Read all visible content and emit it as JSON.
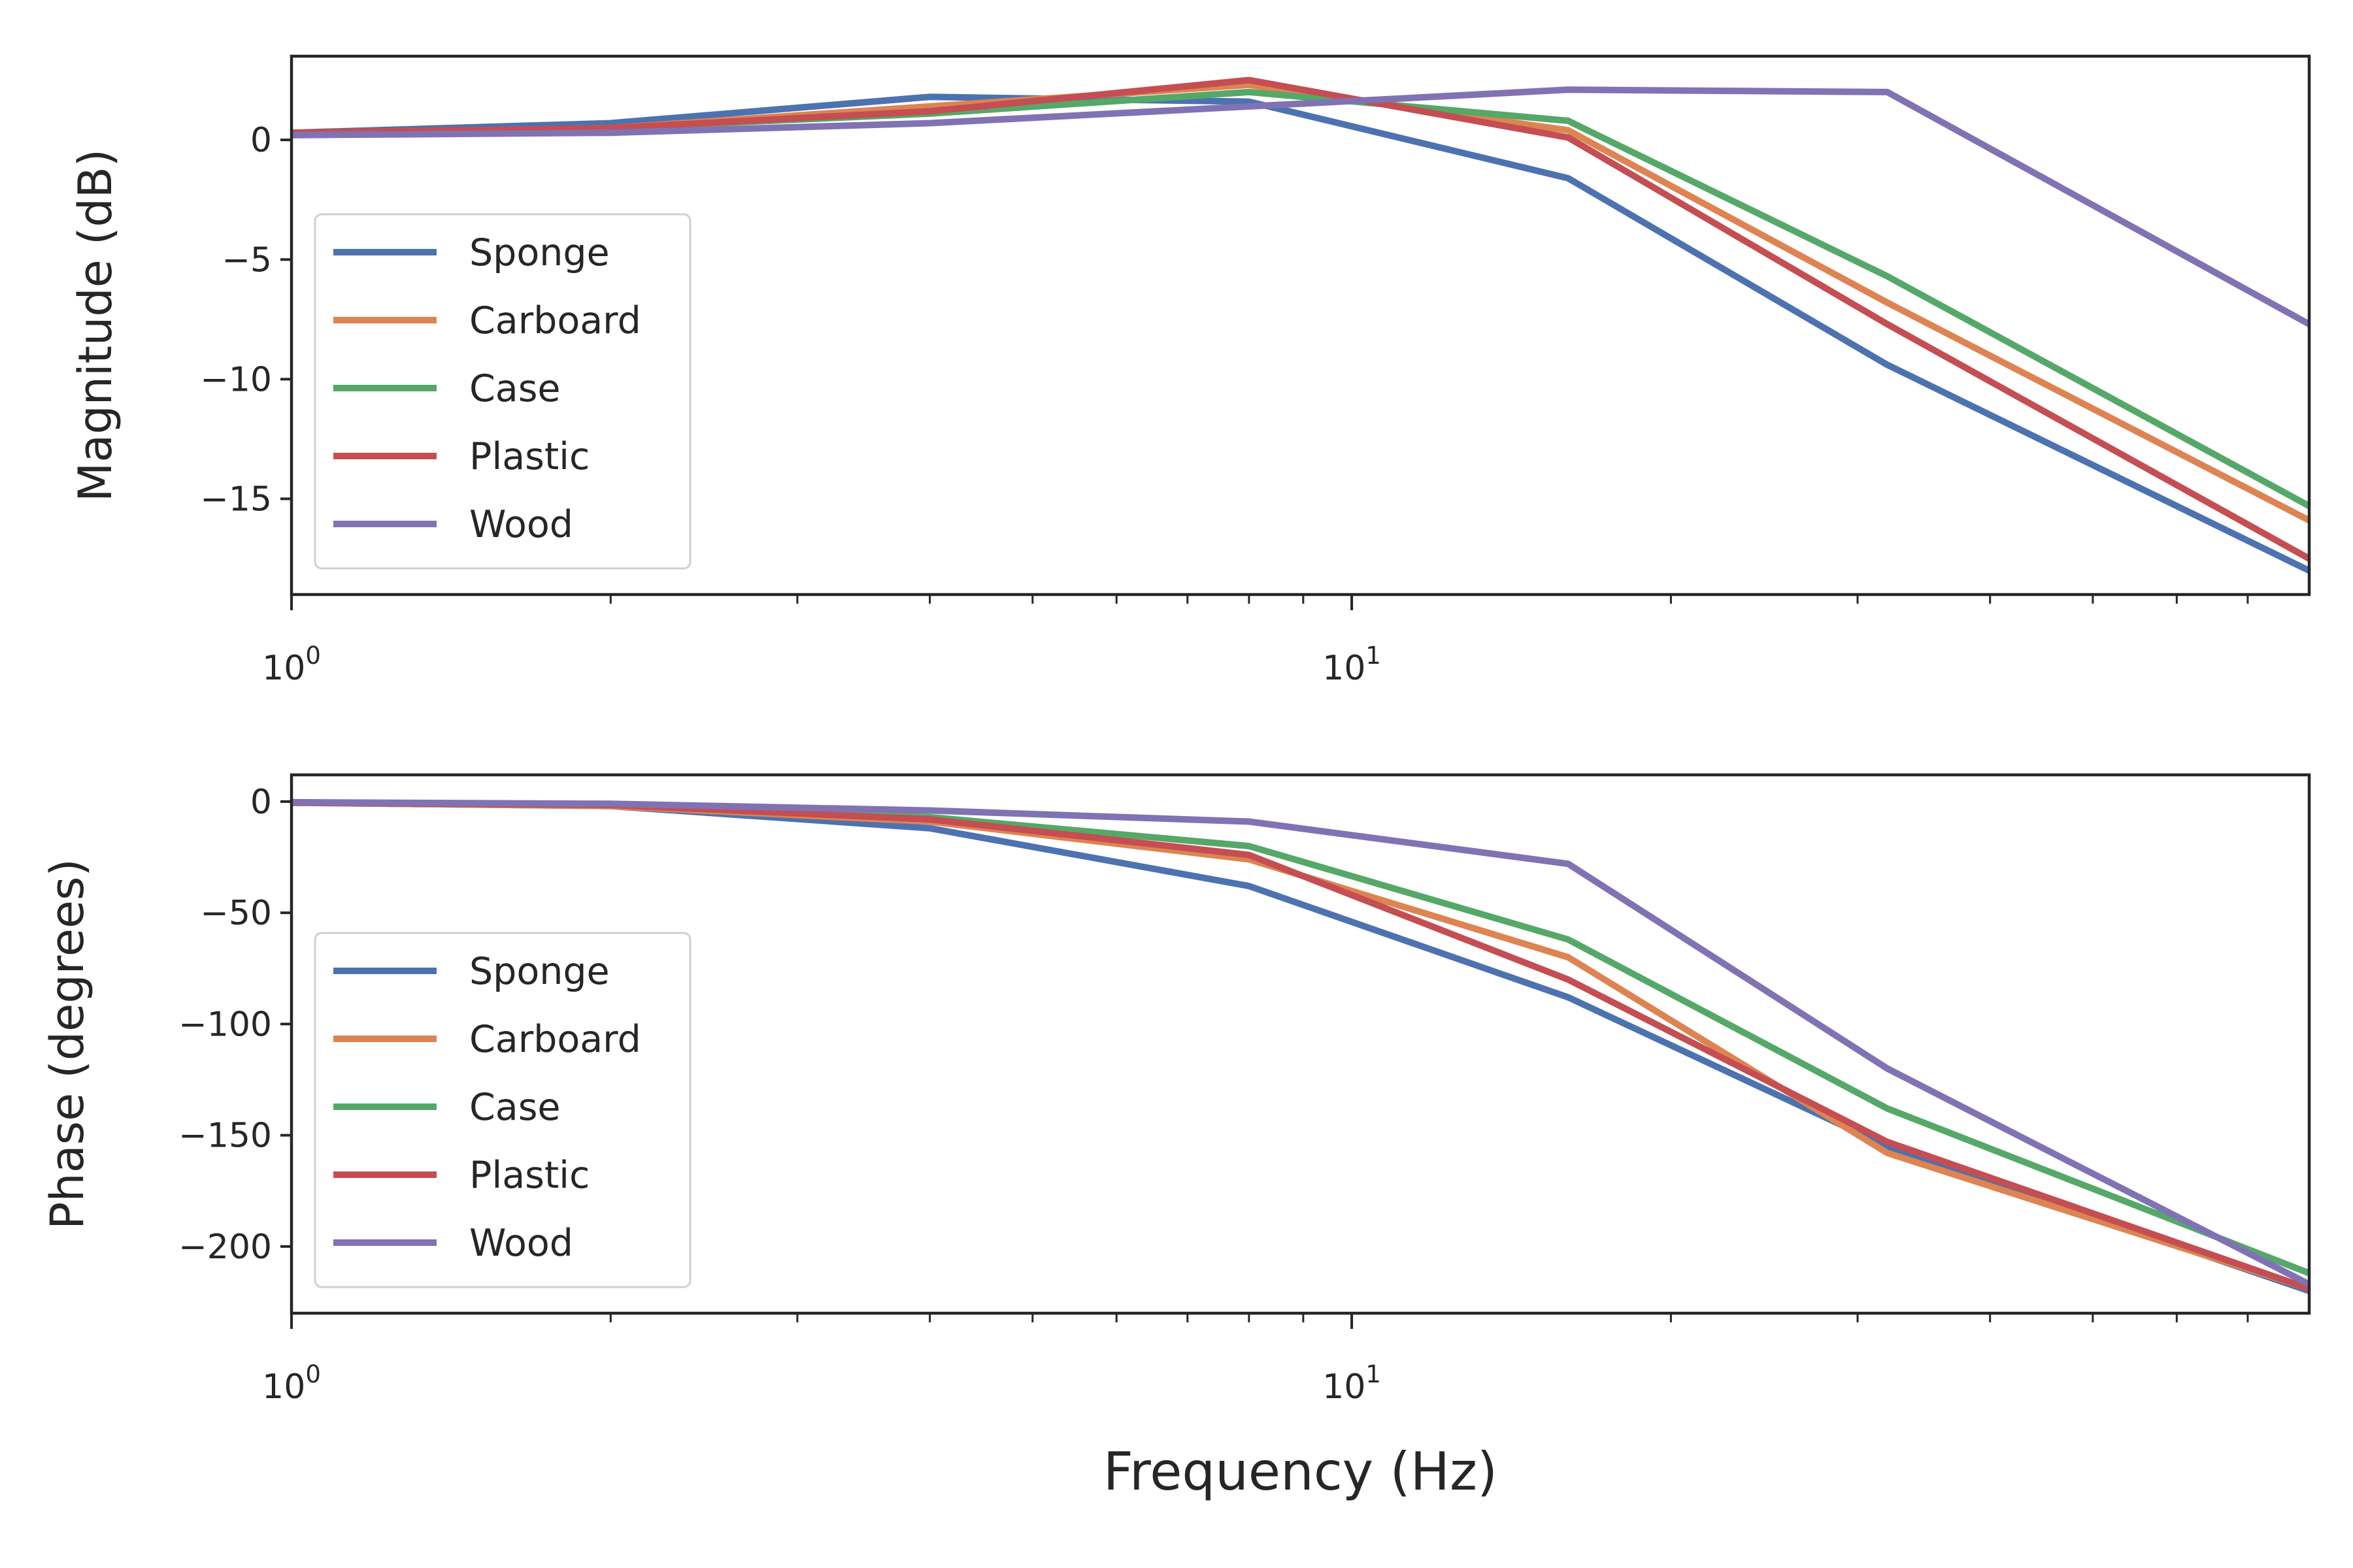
{
  "chart_data": [
    {
      "type": "line",
      "title": "",
      "xlabel": "",
      "ylabel": "Magnitude (dB)",
      "xscale": "log",
      "xlim": [
        1,
        80
      ],
      "ylim": [
        -19,
        3.5
      ],
      "grid": false,
      "legend_position": "lower-left",
      "x_ticks": [
        {
          "base": "10",
          "exp": "0",
          "value": 1
        },
        {
          "base": "10",
          "exp": "1",
          "value": 10
        }
      ],
      "y_ticks": [
        {
          "label": "0",
          "value": 0
        },
        {
          "label": "−5",
          "value": -5
        },
        {
          "label": "−10",
          "value": -10
        },
        {
          "label": "−15",
          "value": -15
        }
      ],
      "x": [
        1,
        2,
        4,
        8,
        16,
        32,
        80
      ],
      "series": [
        {
          "name": "Sponge",
          "color": "#4c72b0",
          "values": [
            0.3,
            0.7,
            1.8,
            1.6,
            -1.6,
            -9.4,
            -18.0
          ]
        },
        {
          "name": "Carboard",
          "color": "#dd8452",
          "values": [
            0.25,
            0.5,
            1.4,
            2.3,
            0.4,
            -6.8,
            -15.9
          ]
        },
        {
          "name": "Case",
          "color": "#55a868",
          "values": [
            0.25,
            0.5,
            1.1,
            2.0,
            0.8,
            -5.7,
            -15.3
          ]
        },
        {
          "name": "Plastic",
          "color": "#c44e52",
          "values": [
            0.3,
            0.5,
            1.2,
            2.5,
            0.1,
            -7.7,
            -17.5
          ]
        },
        {
          "name": "Wood",
          "color": "#8172b3",
          "values": [
            0.2,
            0.3,
            0.7,
            1.4,
            2.1,
            2.0,
            -7.7
          ]
        }
      ]
    },
    {
      "type": "line",
      "title": "",
      "xlabel": "Frequency (Hz)",
      "ylabel": "Phase (degrees)",
      "xscale": "log",
      "xlim": [
        1,
        80
      ],
      "ylim": [
        -230,
        12
      ],
      "grid": false,
      "legend_position": "lower-left",
      "x_ticks": [
        {
          "base": "10",
          "exp": "0",
          "value": 1
        },
        {
          "base": "10",
          "exp": "1",
          "value": 10
        }
      ],
      "y_ticks": [
        {
          "label": "0",
          "value": 0
        },
        {
          "label": "−50",
          "value": -50
        },
        {
          "label": "−100",
          "value": -100
        },
        {
          "label": "−150",
          "value": -150
        },
        {
          "label": "−200",
          "value": -200
        }
      ],
      "x": [
        1,
        2,
        4,
        8,
        16,
        32,
        80
      ],
      "series": [
        {
          "name": "Sponge",
          "color": "#4c72b0",
          "values": [
            -0.5,
            -2,
            -12,
            -38,
            -88,
            -155,
            -220
          ]
        },
        {
          "name": "Carboard",
          "color": "#dd8452",
          "values": [
            -0.5,
            -2,
            -9,
            -26,
            -70,
            -158,
            -219
          ]
        },
        {
          "name": "Case",
          "color": "#55a868",
          "values": [
            -0.5,
            -1.5,
            -7,
            -20,
            -62,
            -138,
            -212
          ]
        },
        {
          "name": "Plastic",
          "color": "#c44e52",
          "values": [
            -0.5,
            -1.5,
            -8,
            -24,
            -80,
            -153,
            -219
          ]
        },
        {
          "name": "Wood",
          "color": "#8172b3",
          "values": [
            -0.3,
            -1,
            -4,
            -9,
            -28,
            -120,
            -217
          ]
        }
      ]
    }
  ]
}
